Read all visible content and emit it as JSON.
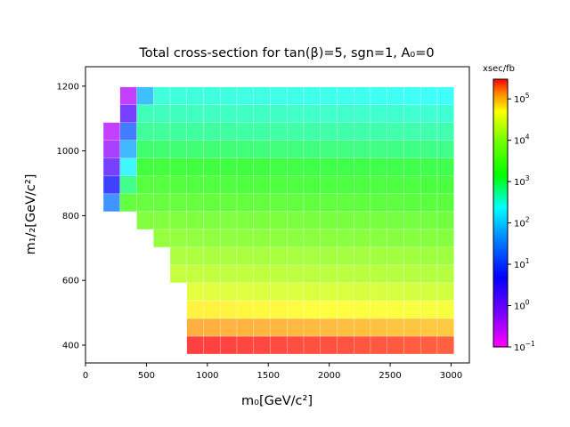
{
  "chart_data": {
    "type": "heatmap",
    "title": "Total cross-section for tan(β)=5, sgn=1, A₀=0",
    "xlabel": "m₀[GeV/c²]",
    "ylabel": "m₁/₂[GeV/c²]",
    "xlim": [
      0,
      3150
    ],
    "ylim": [
      345,
      1260
    ],
    "x_ticks": [
      "0",
      "500",
      "1000",
      "1500",
      "2000",
      "2500",
      "3000"
    ],
    "y_ticks": [
      "400",
      "600",
      "800",
      "1000",
      "1200"
    ],
    "colorbar": {
      "label": "xsec/fb",
      "scale": "log",
      "range": [
        0.1,
        300000
      ],
      "ticks": [
        {
          "base": "10",
          "exp": "−1",
          "value": 0.1
        },
        {
          "base": "10",
          "exp": "0",
          "value": 1
        },
        {
          "base": "10",
          "exp": "1",
          "value": 10
        },
        {
          "base": "10",
          "exp": "2",
          "value": 100
        },
        {
          "base": "10",
          "exp": "3",
          "value": 1000
        },
        {
          "base": "10",
          "exp": "4",
          "value": 10000
        },
        {
          "base": "10",
          "exp": "5",
          "value": 100000
        }
      ]
    },
    "cell_width": 137,
    "cell_height": 55,
    "rows": [
      {
        "m12": 400,
        "cells": [
          [
            900,
            300000
          ],
          [
            1037,
            295000
          ],
          [
            1174,
            290000
          ],
          [
            1311,
            285000
          ],
          [
            1448,
            280000
          ],
          [
            1585,
            275000
          ],
          [
            1722,
            270000
          ],
          [
            1859,
            266000
          ],
          [
            1996,
            262000
          ],
          [
            2133,
            258000
          ],
          [
            2270,
            254000
          ],
          [
            2407,
            250000
          ],
          [
            2544,
            246000
          ],
          [
            2681,
            242000
          ],
          [
            2818,
            238000
          ],
          [
            2955,
            234000
          ]
        ]
      },
      {
        "m12": 455,
        "cells": [
          [
            900,
            120000
          ],
          [
            1037,
            118000
          ],
          [
            1174,
            116000
          ],
          [
            1311,
            114000
          ],
          [
            1448,
            112000
          ],
          [
            1585,
            110000
          ],
          [
            1722,
            108000
          ],
          [
            1859,
            106000
          ],
          [
            1996,
            104000
          ],
          [
            2133,
            102000
          ],
          [
            2270,
            100000
          ],
          [
            2407,
            98000
          ],
          [
            2544,
            96000
          ],
          [
            2681,
            94000
          ],
          [
            2818,
            92000
          ],
          [
            2955,
            90000
          ]
        ]
      },
      {
        "m12": 510,
        "cells": [
          [
            900,
            58000
          ],
          [
            1037,
            57000
          ],
          [
            1174,
            56000
          ],
          [
            1311,
            55000
          ],
          [
            1448,
            54000
          ],
          [
            1585,
            53000
          ],
          [
            1722,
            52000
          ],
          [
            1859,
            51000
          ],
          [
            1996,
            50000
          ],
          [
            2133,
            49000
          ],
          [
            2270,
            48000
          ],
          [
            2407,
            47000
          ],
          [
            2544,
            46000
          ],
          [
            2681,
            45000
          ],
          [
            2818,
            44000
          ],
          [
            2955,
            43000
          ]
        ]
      },
      {
        "m12": 565,
        "cells": [
          [
            900,
            32000
          ],
          [
            1037,
            31500
          ],
          [
            1174,
            31000
          ],
          [
            1311,
            30500
          ],
          [
            1448,
            30000
          ],
          [
            1585,
            29500
          ],
          [
            1722,
            29000
          ],
          [
            1859,
            28500
          ],
          [
            1996,
            28000
          ],
          [
            2133,
            27500
          ],
          [
            2270,
            27000
          ],
          [
            2407,
            26500
          ],
          [
            2544,
            26000
          ],
          [
            2681,
            25500
          ],
          [
            2818,
            25000
          ],
          [
            2955,
            24500
          ]
        ]
      },
      {
        "m12": 620,
        "cells": [
          [
            763,
            20000
          ],
          [
            900,
            19700
          ],
          [
            1037,
            19400
          ],
          [
            1174,
            19100
          ],
          [
            1311,
            18800
          ],
          [
            1448,
            18500
          ],
          [
            1585,
            18200
          ],
          [
            1722,
            17900
          ],
          [
            1859,
            17600
          ],
          [
            1996,
            17300
          ],
          [
            2133,
            17000
          ],
          [
            2270,
            16700
          ],
          [
            2407,
            16400
          ],
          [
            2544,
            16100
          ],
          [
            2681,
            15800
          ],
          [
            2818,
            15500
          ],
          [
            2955,
            15200
          ]
        ]
      },
      {
        "m12": 675,
        "cells": [
          [
            763,
            14000
          ],
          [
            900,
            13800
          ],
          [
            1037,
            13600
          ],
          [
            1174,
            13400
          ],
          [
            1311,
            13200
          ],
          [
            1448,
            13000
          ],
          [
            1585,
            12800
          ],
          [
            1722,
            12600
          ],
          [
            1859,
            12400
          ],
          [
            1996,
            12200
          ],
          [
            2133,
            12000
          ],
          [
            2270,
            11800
          ],
          [
            2407,
            11600
          ],
          [
            2544,
            11400
          ],
          [
            2681,
            11200
          ],
          [
            2818,
            11000
          ],
          [
            2955,
            10800
          ]
        ]
      },
      {
        "m12": 730,
        "cells": [
          [
            626,
            9000
          ],
          [
            763,
            8800
          ],
          [
            900,
            8600
          ],
          [
            1037,
            8400
          ],
          [
            1174,
            8200
          ],
          [
            1311,
            8000
          ],
          [
            1448,
            7800
          ],
          [
            1585,
            7600
          ],
          [
            1722,
            7400
          ],
          [
            1859,
            7200
          ],
          [
            1996,
            7000
          ],
          [
            2133,
            6900
          ],
          [
            2270,
            6800
          ],
          [
            2407,
            6700
          ],
          [
            2544,
            6600
          ],
          [
            2681,
            6500
          ],
          [
            2818,
            6400
          ],
          [
            2955,
            6300
          ]
        ]
      },
      {
        "m12": 785,
        "cells": [
          [
            489,
            6000
          ],
          [
            626,
            5900
          ],
          [
            763,
            5800
          ],
          [
            900,
            5700
          ],
          [
            1037,
            5600
          ],
          [
            1174,
            5500
          ],
          [
            1311,
            5400
          ],
          [
            1448,
            5300
          ],
          [
            1585,
            5200
          ],
          [
            1722,
            5100
          ],
          [
            1859,
            5000
          ],
          [
            1996,
            4900
          ],
          [
            2133,
            4800
          ],
          [
            2270,
            4700
          ],
          [
            2407,
            4600
          ],
          [
            2544,
            4500
          ],
          [
            2681,
            4400
          ],
          [
            2818,
            4300
          ],
          [
            2955,
            4200
          ]
        ]
      },
      {
        "m12": 840,
        "cells": [
          [
            215,
            30
          ],
          [
            352,
            3000
          ],
          [
            489,
            3400
          ],
          [
            626,
            3350
          ],
          [
            763,
            3300
          ],
          [
            900,
            3250
          ],
          [
            1037,
            3200
          ],
          [
            1174,
            3150
          ],
          [
            1311,
            3100
          ],
          [
            1448,
            3050
          ],
          [
            1585,
            3000
          ],
          [
            1722,
            2950
          ],
          [
            1859,
            2900
          ],
          [
            1996,
            2850
          ],
          [
            2133,
            2800
          ],
          [
            2270,
            2750
          ],
          [
            2407,
            2700
          ],
          [
            2544,
            2650
          ],
          [
            2681,
            2600
          ],
          [
            2818,
            2550
          ],
          [
            2955,
            2500
          ]
        ]
      },
      {
        "m12": 895,
        "cells": [
          [
            215,
            5
          ],
          [
            352,
            700
          ],
          [
            489,
            2300
          ],
          [
            626,
            2250
          ],
          [
            763,
            2200
          ],
          [
            900,
            2150
          ],
          [
            1037,
            2100
          ],
          [
            1174,
            2050
          ],
          [
            1311,
            2000
          ],
          [
            1448,
            1980
          ],
          [
            1585,
            1960
          ],
          [
            1722,
            1940
          ],
          [
            1859,
            1920
          ],
          [
            1996,
            1900
          ],
          [
            2133,
            1880
          ],
          [
            2270,
            1860
          ],
          [
            2407,
            1840
          ],
          [
            2544,
            1820
          ],
          [
            2681,
            1800
          ],
          [
            2818,
            1780
          ],
          [
            2955,
            1760
          ]
        ]
      },
      {
        "m12": 950,
        "cells": [
          [
            215,
            1.5
          ],
          [
            352,
            200
          ],
          [
            489,
            1500
          ],
          [
            626,
            1480
          ],
          [
            763,
            1460
          ],
          [
            900,
            1440
          ],
          [
            1037,
            1420
          ],
          [
            1174,
            1400
          ],
          [
            1311,
            1380
          ],
          [
            1448,
            1360
          ],
          [
            1585,
            1340
          ],
          [
            1722,
            1320
          ],
          [
            1859,
            1300
          ],
          [
            1996,
            1290
          ],
          [
            2133,
            1280
          ],
          [
            2270,
            1270
          ],
          [
            2407,
            1260
          ],
          [
            2544,
            1250
          ],
          [
            2681,
            1240
          ],
          [
            2818,
            1230
          ],
          [
            2955,
            1220
          ]
        ]
      },
      {
        "m12": 1005,
        "cells": [
          [
            215,
            0.5
          ],
          [
            352,
            60
          ],
          [
            489,
            900
          ],
          [
            626,
            880
          ],
          [
            763,
            860
          ],
          [
            900,
            850
          ],
          [
            1037,
            840
          ],
          [
            1174,
            830
          ],
          [
            1311,
            820
          ],
          [
            1448,
            810
          ],
          [
            1585,
            800
          ],
          [
            1722,
            790
          ],
          [
            1859,
            780
          ],
          [
            1996,
            770
          ],
          [
            2133,
            760
          ],
          [
            2270,
            750
          ],
          [
            2407,
            740
          ],
          [
            2544,
            730
          ],
          [
            2681,
            720
          ],
          [
            2818,
            710
          ],
          [
            2955,
            700
          ]
        ]
      },
      {
        "m12": 1060,
        "cells": [
          [
            215,
            0.3
          ],
          [
            352,
            18
          ],
          [
            489,
            600
          ],
          [
            626,
            590
          ],
          [
            763,
            580
          ],
          [
            900,
            570
          ],
          [
            1037,
            560
          ],
          [
            1174,
            555
          ],
          [
            1311,
            550
          ],
          [
            1448,
            545
          ],
          [
            1585,
            540
          ],
          [
            1722,
            535
          ],
          [
            1859,
            530
          ],
          [
            1996,
            525
          ],
          [
            2133,
            520
          ],
          [
            2270,
            515
          ],
          [
            2407,
            510
          ],
          [
            2544,
            505
          ],
          [
            2681,
            500
          ],
          [
            2818,
            495
          ],
          [
            2955,
            490
          ]
        ]
      },
      {
        "m12": 1115,
        "cells": [
          [
            352,
            1.5
          ],
          [
            489,
            450
          ],
          [
            626,
            440
          ],
          [
            763,
            430
          ],
          [
            900,
            425
          ],
          [
            1037,
            420
          ],
          [
            1174,
            415
          ],
          [
            1311,
            410
          ],
          [
            1448,
            405
          ],
          [
            1585,
            400
          ],
          [
            1722,
            395
          ],
          [
            1859,
            390
          ],
          [
            1996,
            385
          ],
          [
            2133,
            380
          ],
          [
            2270,
            375
          ],
          [
            2407,
            370
          ],
          [
            2544,
            365
          ],
          [
            2681,
            360
          ],
          [
            2818,
            355
          ],
          [
            2955,
            350
          ]
        ]
      },
      {
        "m12": 1170,
        "cells": [
          [
            352,
            0.3
          ],
          [
            489,
            70
          ],
          [
            626,
            330
          ],
          [
            763,
            325
          ],
          [
            900,
            320
          ],
          [
            1037,
            315
          ],
          [
            1174,
            310
          ],
          [
            1311,
            305
          ],
          [
            1448,
            300
          ],
          [
            1585,
            295
          ],
          [
            1722,
            290
          ],
          [
            1859,
            285
          ],
          [
            1996,
            280
          ],
          [
            2133,
            275
          ],
          [
            2270,
            270
          ],
          [
            2407,
            265
          ],
          [
            2544,
            260
          ],
          [
            2681,
            255
          ],
          [
            2818,
            250
          ],
          [
            2955,
            245
          ]
        ]
      }
    ]
  }
}
